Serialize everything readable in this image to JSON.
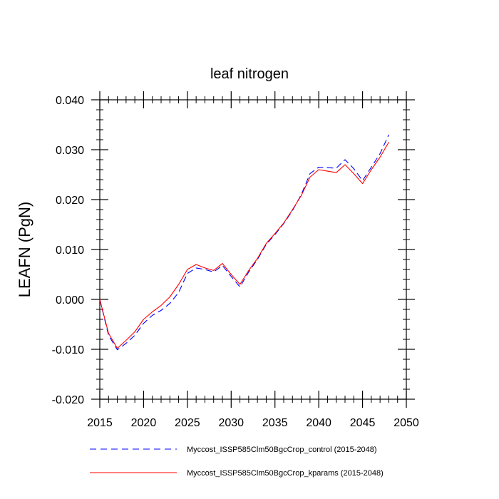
{
  "chart_data": {
    "type": "line",
    "title": "leaf nitrogen",
    "ylabel": "LEAFN  (PgN)",
    "xlabel": "",
    "xlim": [
      2015,
      2050
    ],
    "ylim": [
      -0.02,
      0.04
    ],
    "x_ticks": [
      2015,
      2020,
      2025,
      2030,
      2035,
      2040,
      2045,
      2050
    ],
    "x_tick_labels": [
      "2015",
      "2020",
      "2025",
      "2030",
      "2035",
      "2040",
      "2045",
      "2050"
    ],
    "y_ticks": [
      -0.02,
      -0.01,
      0.0,
      0.01,
      0.02,
      0.03,
      0.04
    ],
    "y_tick_labels": [
      "-0.020",
      "-0.010",
      "0.000",
      "0.010",
      "0.020",
      "0.030",
      "0.040"
    ],
    "x": [
      2015,
      2016,
      2017,
      2018,
      2019,
      2020,
      2021,
      2022,
      2023,
      2024,
      2025,
      2026,
      2027,
      2028,
      2029,
      2030,
      2031,
      2032,
      2033,
      2034,
      2035,
      2036,
      2037,
      2038,
      2039,
      2040,
      2041,
      2042,
      2043,
      2044,
      2045,
      2046,
      2047,
      2048
    ],
    "series": [
      {
        "name": "Myccost_ISSP585Clm50BgcCrop_control (2015-2048)",
        "color": "#0000ff",
        "style": "dashed",
        "values": [
          0.0,
          -0.0072,
          -0.0101,
          -0.0088,
          -0.0072,
          -0.0048,
          -0.0032,
          -0.0022,
          -0.0008,
          0.0014,
          0.0052,
          0.0063,
          0.006,
          0.0055,
          0.0068,
          0.0046,
          0.0025,
          0.0055,
          0.008,
          0.011,
          0.013,
          0.0152,
          0.0178,
          0.021,
          0.0252,
          0.0265,
          0.0264,
          0.0263,
          0.028,
          0.0262,
          0.0238,
          0.0265,
          0.0292,
          0.033
        ]
      },
      {
        "name": "Myccost_ISSP585Clm50BgcCrop_kparams (2015-2048)",
        "color": "#ff0000",
        "style": "solid",
        "values": [
          0.0,
          -0.0068,
          -0.0098,
          -0.0082,
          -0.0065,
          -0.004,
          -0.0025,
          -0.0012,
          0.0005,
          0.003,
          0.006,
          0.007,
          0.0063,
          0.0058,
          0.0072,
          0.005,
          0.003,
          0.0058,
          0.0082,
          0.0112,
          0.0132,
          0.0153,
          0.018,
          0.0208,
          0.0245,
          0.026,
          0.0257,
          0.0254,
          0.027,
          0.0252,
          0.0232,
          0.026,
          0.0285,
          0.0315
        ]
      }
    ],
    "legend_position": "bottom",
    "grid": false
  }
}
